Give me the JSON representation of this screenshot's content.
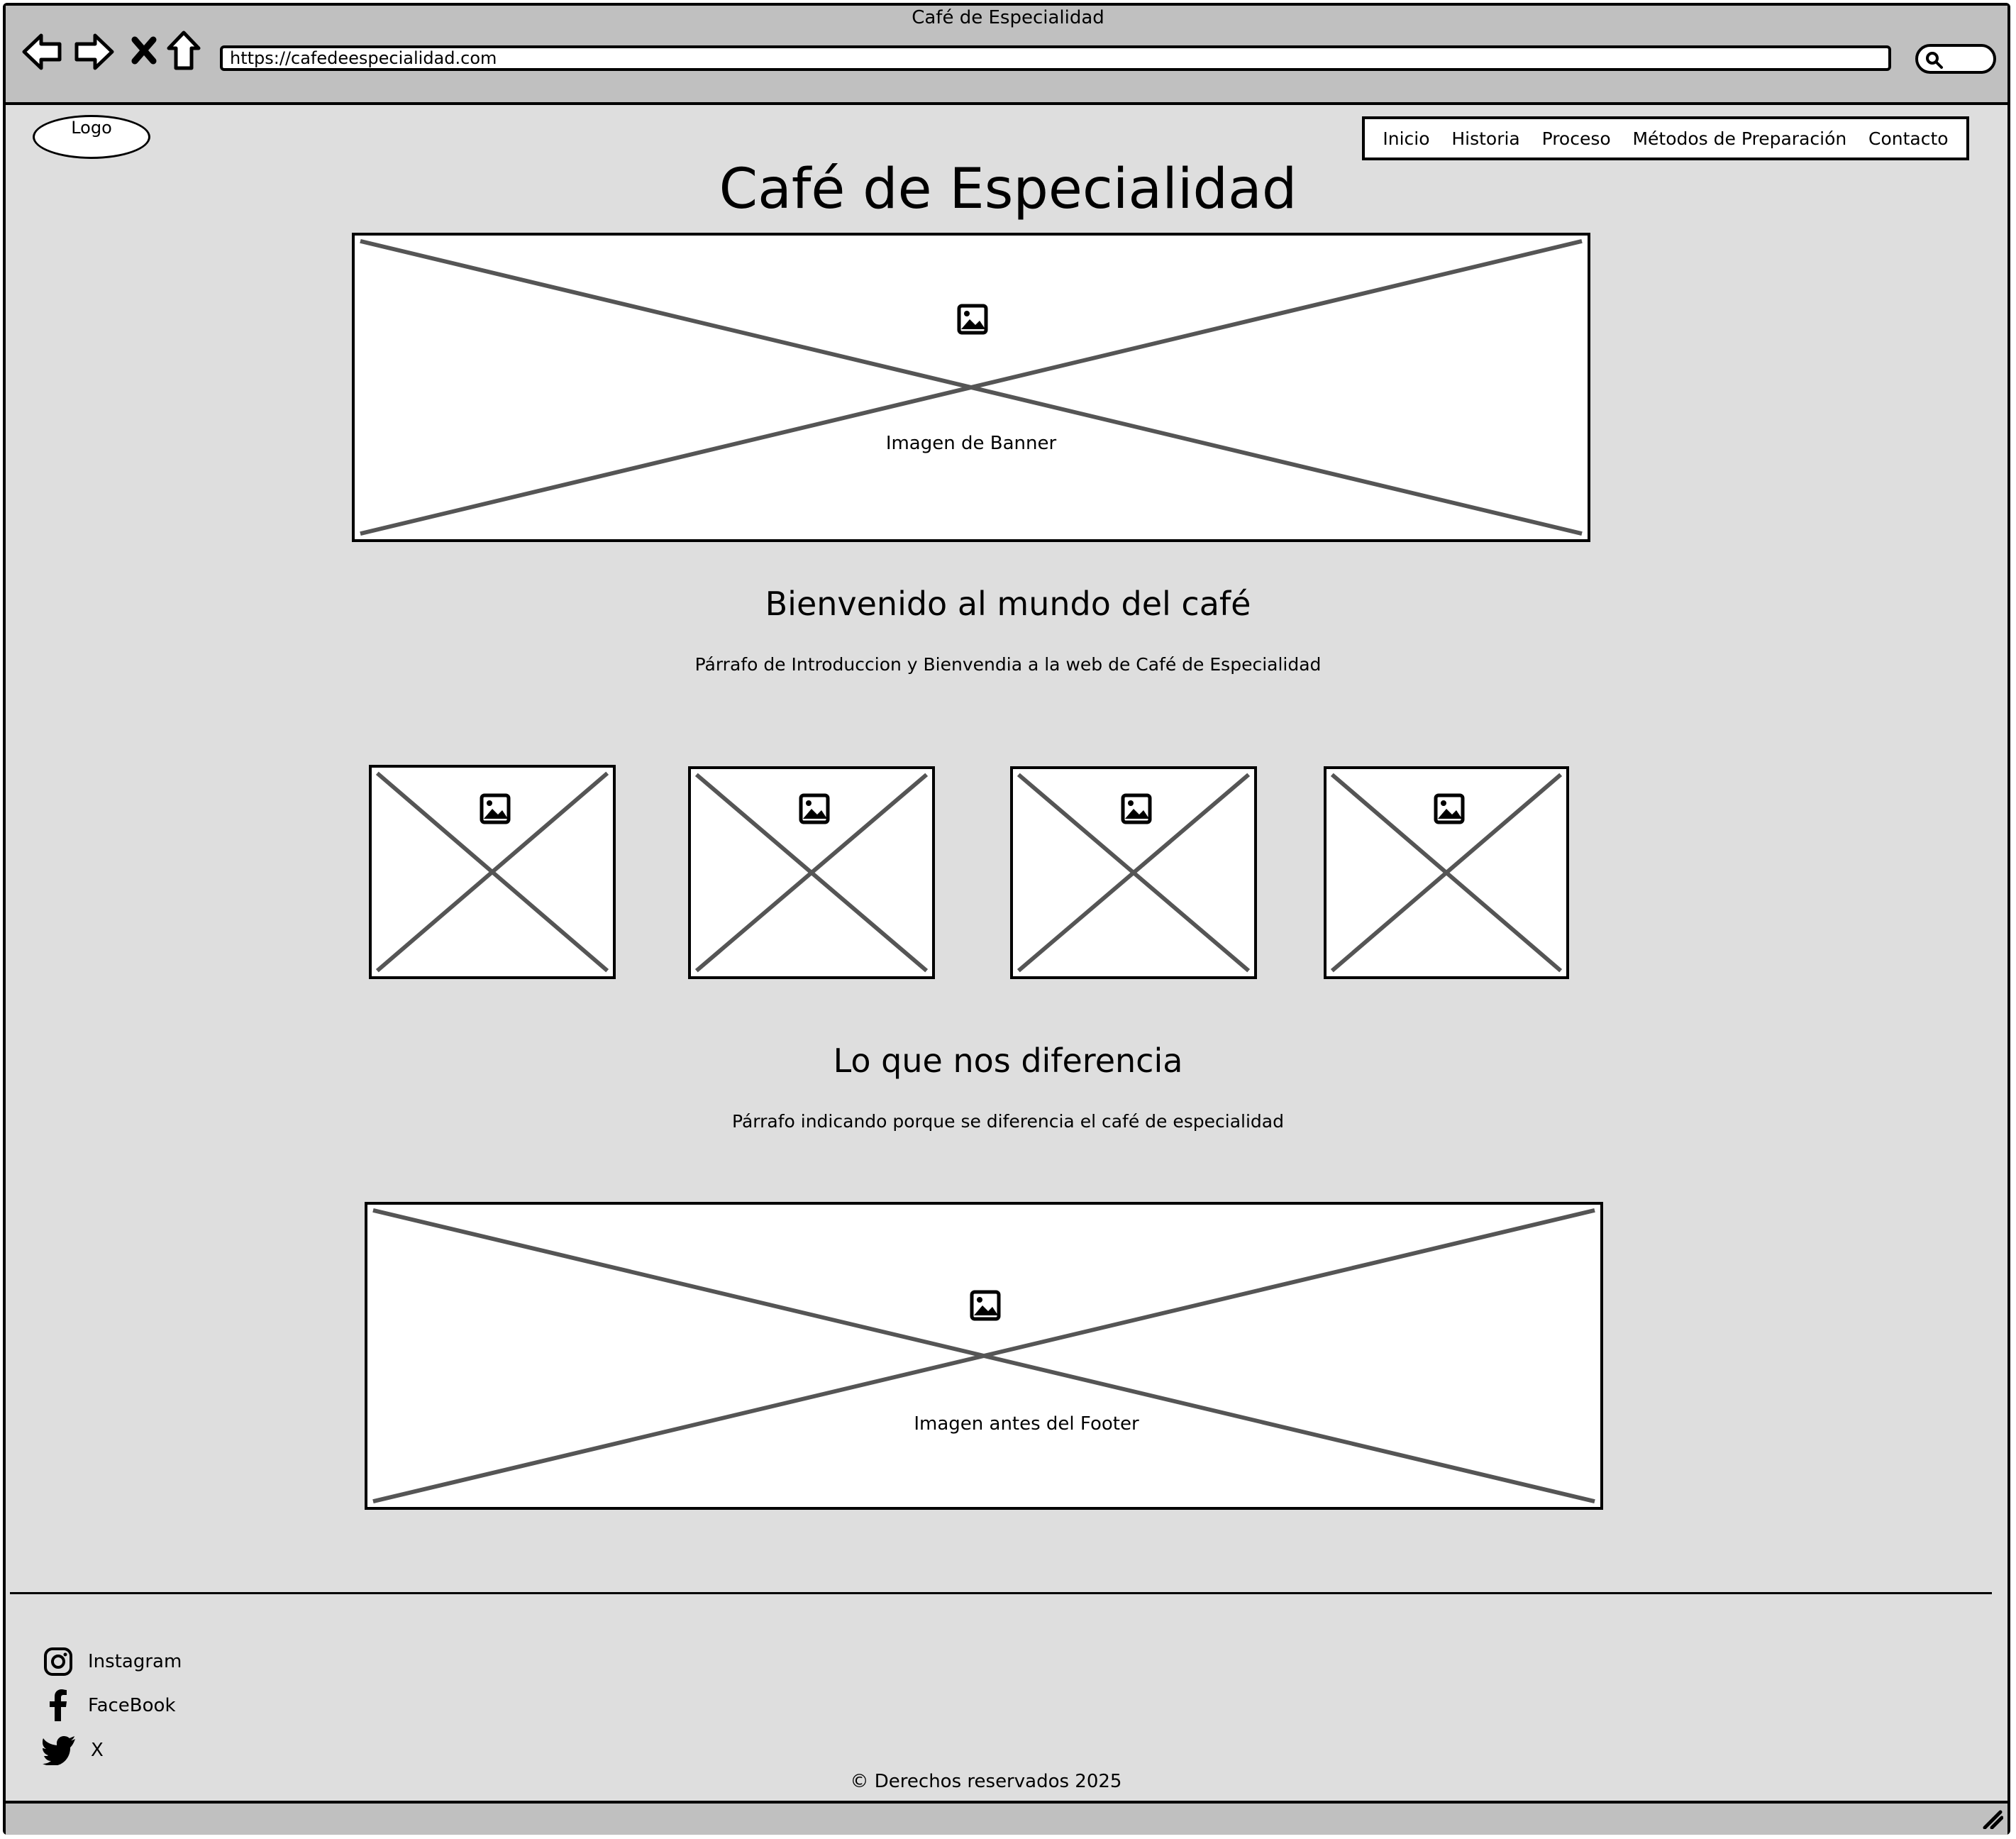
{
  "browser": {
    "window_title": "Café de Especialidad",
    "url": "https://cafedeespecialidad.com"
  },
  "header": {
    "logo_label": "Logo",
    "nav": [
      "Inicio",
      "Historia",
      "Proceso",
      "Métodos de Preparación",
      "Contacto"
    ]
  },
  "main": {
    "title": "Café de Especialidad",
    "banner_caption": "Imagen de Banner",
    "welcome_heading": "Bienvenido al mundo del café",
    "welcome_paragraph": "Párrafo de Introduccion y Bienvendia a la web de Café de Especialidad",
    "diff_heading": "Lo que nos diferencia",
    "diff_paragraph": "Párrafo indicando porque se diferencia el café de especialidad",
    "footer_image_caption": "Imagen antes del Footer"
  },
  "footer": {
    "social": [
      {
        "label": "Instagram",
        "icon": "instagram-icon"
      },
      {
        "label": "FaceBook",
        "icon": "facebook-icon"
      },
      {
        "label": "X",
        "icon": "twitter-icon"
      }
    ],
    "copyright": "© Derechos reservados 2025"
  }
}
